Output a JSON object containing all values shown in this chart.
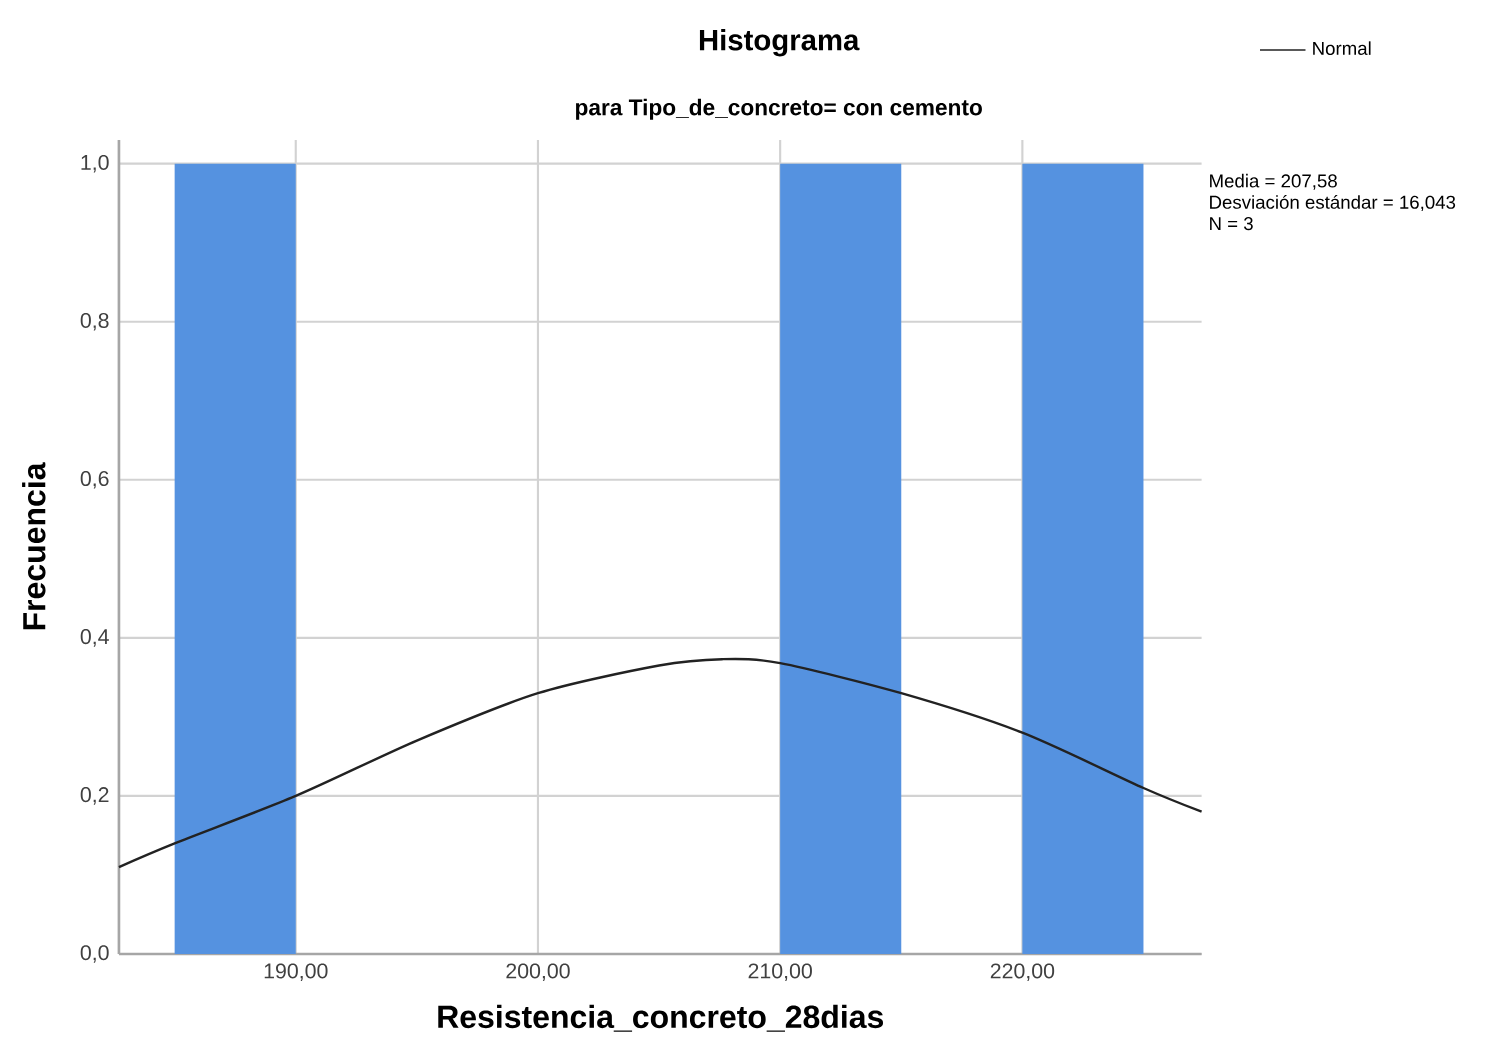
{
  "chart_data": {
    "type": "histogram",
    "title": "Histograma",
    "subtitle": "para Tipo_de_concreto= con cemento",
    "xlabel": "Resistencia_concreto_28dias",
    "ylabel": "Frecuencia",
    "annotations": [
      "Media = 207,58",
      "Desviación estándar = 16,043",
      "N = 3"
    ],
    "series": [
      {
        "color": "#5592e0",
        "bins": [
          185,
          190,
          195,
          200,
          205,
          210,
          215,
          220,
          225
        ],
        "values": [
          1,
          0,
          0,
          0,
          0,
          1,
          0,
          1
        ]
      },
      {
        "type": "line",
        "name": "Normal",
        "color": "#222222",
        "x": [
          182.7,
          185,
          190,
          195,
          200,
          205,
          207.6,
          210,
          215,
          220,
          225,
          227.4
        ],
        "values": [
          0.11,
          0.14,
          0.2,
          0.27,
          0.33,
          0.365,
          0.373,
          0.368,
          0.33,
          0.28,
          0.21,
          0.18
        ]
      }
    ],
    "xlim": [
      182.7,
      227.4
    ],
    "ylim": [
      0,
      1.03
    ],
    "xticks": [
      {
        "value": 190,
        "label": "190,00"
      },
      {
        "value": 200,
        "label": "200,00"
      },
      {
        "value": 210,
        "label": "210,00"
      },
      {
        "value": 220,
        "label": "220,00"
      }
    ],
    "yticks": [
      {
        "value": 0,
        "label": "0,0"
      },
      {
        "value": 0.2,
        "label": "0,2"
      },
      {
        "value": 0.4,
        "label": "0,4"
      },
      {
        "value": 0.6,
        "label": "0,6"
      },
      {
        "value": 0.8,
        "label": "0,8"
      },
      {
        "value": 1.0,
        "label": "1,0"
      }
    ],
    "grid": true,
    "legend": "top right"
  }
}
